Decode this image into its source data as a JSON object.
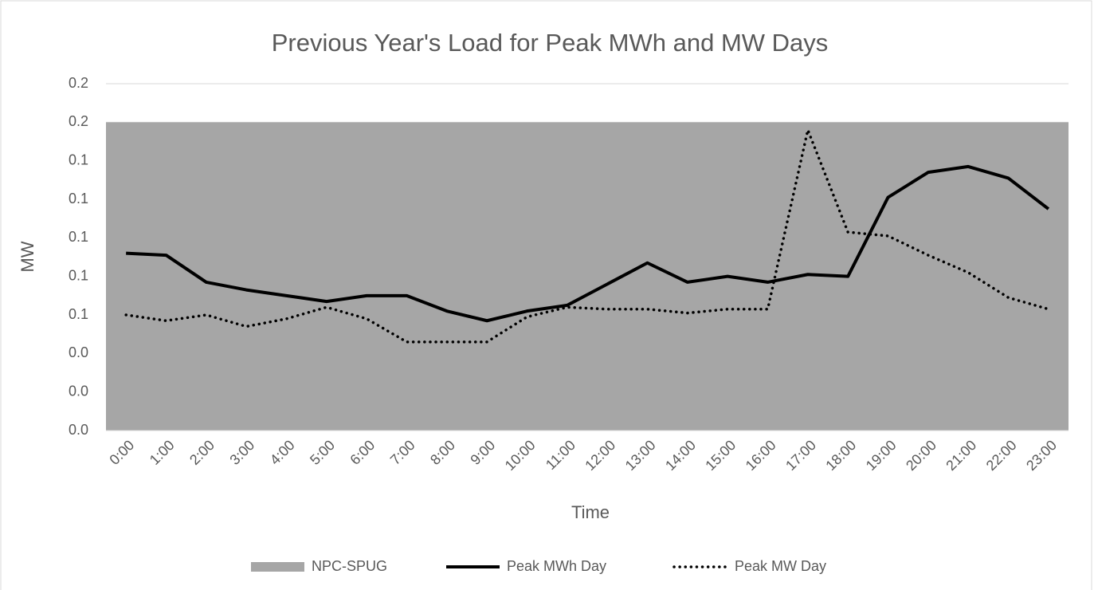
{
  "chart_data": {
    "type": "line",
    "title": "Previous Year's Load for Peak MWh and MW Days",
    "x_label": "Time",
    "y_label": "MW",
    "categories": [
      "0:00",
      "1:00",
      "2:00",
      "3:00",
      "4:00",
      "5:00",
      "6:00",
      "7:00",
      "8:00",
      "9:00",
      "10:00",
      "11:00",
      "12:00",
      "13:00",
      "14:00",
      "15:00",
      "16:00",
      "17:00",
      "18:00",
      "19:00",
      "20:00",
      "21:00",
      "22:00",
      "23:00"
    ],
    "ylim": [
      0,
      0.18
    ],
    "yticks": [
      {
        "value": 0,
        "label": "0.0"
      },
      {
        "value": 0.02,
        "label": "0.0"
      },
      {
        "value": 0.04,
        "label": "0.0"
      },
      {
        "value": 0.06,
        "label": "0.1"
      },
      {
        "value": 0.08,
        "label": "0.1"
      },
      {
        "value": 0.1,
        "label": "0.1"
      },
      {
        "value": 0.12,
        "label": "0.1"
      },
      {
        "value": 0.14,
        "label": "0.1"
      },
      {
        "value": 0.16,
        "label": "0.2"
      },
      {
        "value": 0.18,
        "label": "0.2"
      }
    ],
    "grid": true,
    "legend": "bottom",
    "series": [
      {
        "name": "NPC-SPUG",
        "type": "area",
        "color": "#a6a6a6",
        "values": [
          0.16,
          0.16,
          0.16,
          0.16,
          0.16,
          0.16,
          0.16,
          0.16,
          0.16,
          0.16,
          0.16,
          0.16,
          0.16,
          0.16,
          0.16,
          0.16,
          0.16,
          0.16,
          0.16,
          0.16,
          0.16,
          0.16,
          0.16,
          0.16
        ]
      },
      {
        "name": "Peak MWh Day",
        "type": "line",
        "style": "solid",
        "color": "#000000",
        "values": [
          0.092,
          0.091,
          0.077,
          0.073,
          0.07,
          0.067,
          0.07,
          0.07,
          0.062,
          0.057,
          0.062,
          0.065,
          0.076,
          0.087,
          0.077,
          0.08,
          0.077,
          0.081,
          0.08,
          0.121,
          0.134,
          0.137,
          0.131,
          0.115
        ]
      },
      {
        "name": "Peak MW Day",
        "type": "line",
        "style": "dotted",
        "color": "#000000",
        "values": [
          0.06,
          0.057,
          0.06,
          0.054,
          0.058,
          0.064,
          0.058,
          0.046,
          0.046,
          0.046,
          0.059,
          0.064,
          0.063,
          0.063,
          0.061,
          0.063,
          0.063,
          0.156,
          0.103,
          0.101,
          0.091,
          0.082,
          0.069,
          0.063
        ]
      }
    ]
  }
}
